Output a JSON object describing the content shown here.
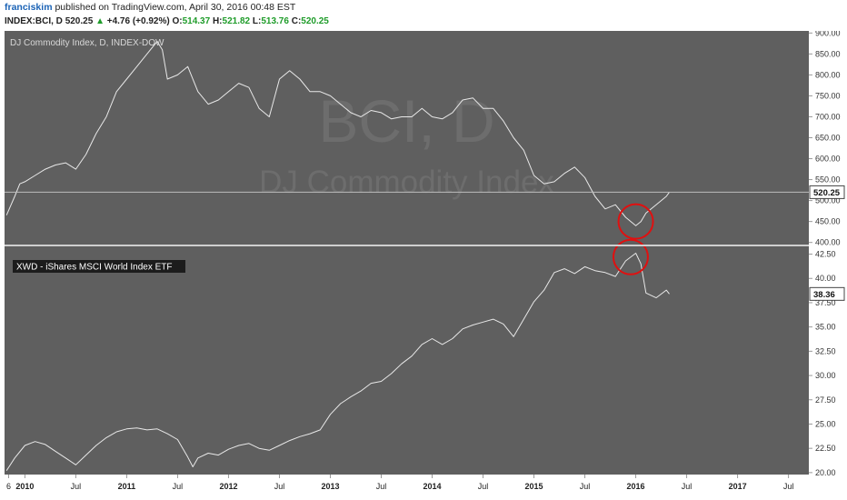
{
  "header": {
    "author": "franciskim",
    "published": "published on TradingView.com, April 30, 2016 00:48 EST",
    "symbol": "INDEX:BCI, D",
    "last": "520.25",
    "change": "+4.76 (+0.92%)",
    "open_label": "O:",
    "open": "514.37",
    "high_label": "H:",
    "high": "521.82",
    "low_label": "L:",
    "low": "513.76",
    "close_label": "C:",
    "close": "520.25"
  },
  "colors": {
    "panel_bg": "#5f5f5f",
    "line": "#e8e8e8",
    "axis_bg": "#ffffff",
    "circle": "#e01010",
    "up": "#1f9c2a",
    "author": "#1b63b6"
  },
  "chart_data": [
    {
      "type": "line",
      "title": "DJ Commodity Index, D, INDEX-DOW",
      "watermark_symbol": "BCI, D",
      "watermark_name": "DJ Commodity Index",
      "last_value_label": "520.25",
      "yticks": [
        400,
        450,
        500,
        550,
        600,
        650,
        700,
        750,
        800,
        850,
        900
      ],
      "ylim": [
        395,
        905
      ],
      "x_ticks": [
        "6",
        "2010",
        "Jul",
        "2011",
        "Jul",
        "2012",
        "Jul",
        "2013",
        "Jul",
        "2014",
        "Jul",
        "2015",
        "Jul",
        "2016",
        "Jul",
        "2017",
        "Jul"
      ],
      "xlim": [
        2009.8,
        2017.7
      ],
      "annotation": {
        "type": "circle",
        "x": 2016.0,
        "y": 450
      },
      "series": [
        {
          "x": [
            2009.82,
            2009.9,
            2009.95,
            2010.0,
            2010.1,
            2010.2,
            2010.3,
            2010.4,
            2010.5,
            2010.6,
            2010.7,
            2010.8,
            2010.9,
            2011.0,
            2011.1,
            2011.2,
            2011.3,
            2011.35,
            2011.4,
            2011.5,
            2011.6,
            2011.7,
            2011.8,
            2011.9,
            2012.0,
            2012.1,
            2012.2,
            2012.3,
            2012.4,
            2012.5,
            2012.6,
            2012.7,
            2012.8,
            2012.9,
            2013.0,
            2013.1,
            2013.2,
            2013.3,
            2013.4,
            2013.5,
            2013.6,
            2013.7,
            2013.8,
            2013.9,
            2014.0,
            2014.1,
            2014.2,
            2014.3,
            2014.4,
            2014.5,
            2014.6,
            2014.7,
            2014.8,
            2014.9,
            2015.0,
            2015.1,
            2015.2,
            2015.3,
            2015.4,
            2015.5,
            2015.6,
            2015.7,
            2015.8,
            2015.9,
            2016.0,
            2016.05,
            2016.1,
            2016.2,
            2016.3,
            2016.33
          ],
          "values": [
            465,
            510,
            540,
            545,
            560,
            575,
            585,
            590,
            575,
            610,
            660,
            700,
            760,
            790,
            820,
            850,
            880,
            860,
            790,
            800,
            820,
            760,
            730,
            740,
            760,
            780,
            770,
            720,
            700,
            790,
            810,
            790,
            760,
            760,
            750,
            730,
            710,
            700,
            715,
            710,
            695,
            700,
            700,
            720,
            700,
            695,
            710,
            740,
            745,
            720,
            720,
            690,
            650,
            620,
            560,
            540,
            545,
            565,
            580,
            555,
            510,
            480,
            490,
            460,
            440,
            450,
            470,
            490,
            510,
            520
          ]
        }
      ]
    },
    {
      "type": "line",
      "title": "XWD - iShares MSCI World Index ETF",
      "last_value_label": "38.36",
      "yticks": [
        20.0,
        22.5,
        25.0,
        27.5,
        30.0,
        32.5,
        35.0,
        37.5,
        40.0,
        42.5
      ],
      "ylim": [
        19.8,
        43.3
      ],
      "xlim": [
        2009.8,
        2017.7
      ],
      "annotation": {
        "type": "circle",
        "x": 2015.95,
        "y": 42.2
      },
      "series": [
        {
          "x": [
            2009.82,
            2009.9,
            2010.0,
            2010.1,
            2010.2,
            2010.3,
            2010.4,
            2010.5,
            2010.6,
            2010.7,
            2010.8,
            2010.9,
            2011.0,
            2011.1,
            2011.2,
            2011.3,
            2011.4,
            2011.5,
            2011.6,
            2011.65,
            2011.7,
            2011.8,
            2011.9,
            2012.0,
            2012.1,
            2012.2,
            2012.3,
            2012.4,
            2012.5,
            2012.6,
            2012.7,
            2012.8,
            2012.9,
            2013.0,
            2013.1,
            2013.2,
            2013.3,
            2013.4,
            2013.5,
            2013.6,
            2013.7,
            2013.8,
            2013.9,
            2014.0,
            2014.1,
            2014.2,
            2014.3,
            2014.4,
            2014.5,
            2014.6,
            2014.7,
            2014.8,
            2014.9,
            2015.0,
            2015.1,
            2015.2,
            2015.3,
            2015.4,
            2015.5,
            2015.6,
            2015.7,
            2015.8,
            2015.9,
            2016.0,
            2016.05,
            2016.1,
            2016.2,
            2016.3,
            2016.33
          ],
          "values": [
            20.2,
            21.5,
            22.8,
            23.2,
            22.9,
            22.2,
            21.5,
            20.8,
            21.8,
            22.8,
            23.6,
            24.2,
            24.5,
            24.6,
            24.4,
            24.5,
            24.0,
            23.4,
            21.6,
            20.6,
            21.5,
            22.0,
            21.8,
            22.4,
            22.8,
            23.0,
            22.5,
            22.3,
            22.8,
            23.3,
            23.7,
            24.0,
            24.4,
            26.0,
            27.1,
            27.8,
            28.4,
            29.2,
            29.4,
            30.2,
            31.2,
            32.0,
            33.2,
            33.8,
            33.2,
            33.8,
            34.8,
            35.2,
            35.5,
            35.8,
            35.3,
            34.0,
            35.8,
            37.6,
            38.8,
            40.6,
            41.0,
            40.5,
            41.2,
            40.8,
            40.6,
            40.2,
            41.8,
            42.6,
            41.5,
            38.5,
            38.0,
            38.8,
            38.4
          ]
        }
      ]
    }
  ]
}
